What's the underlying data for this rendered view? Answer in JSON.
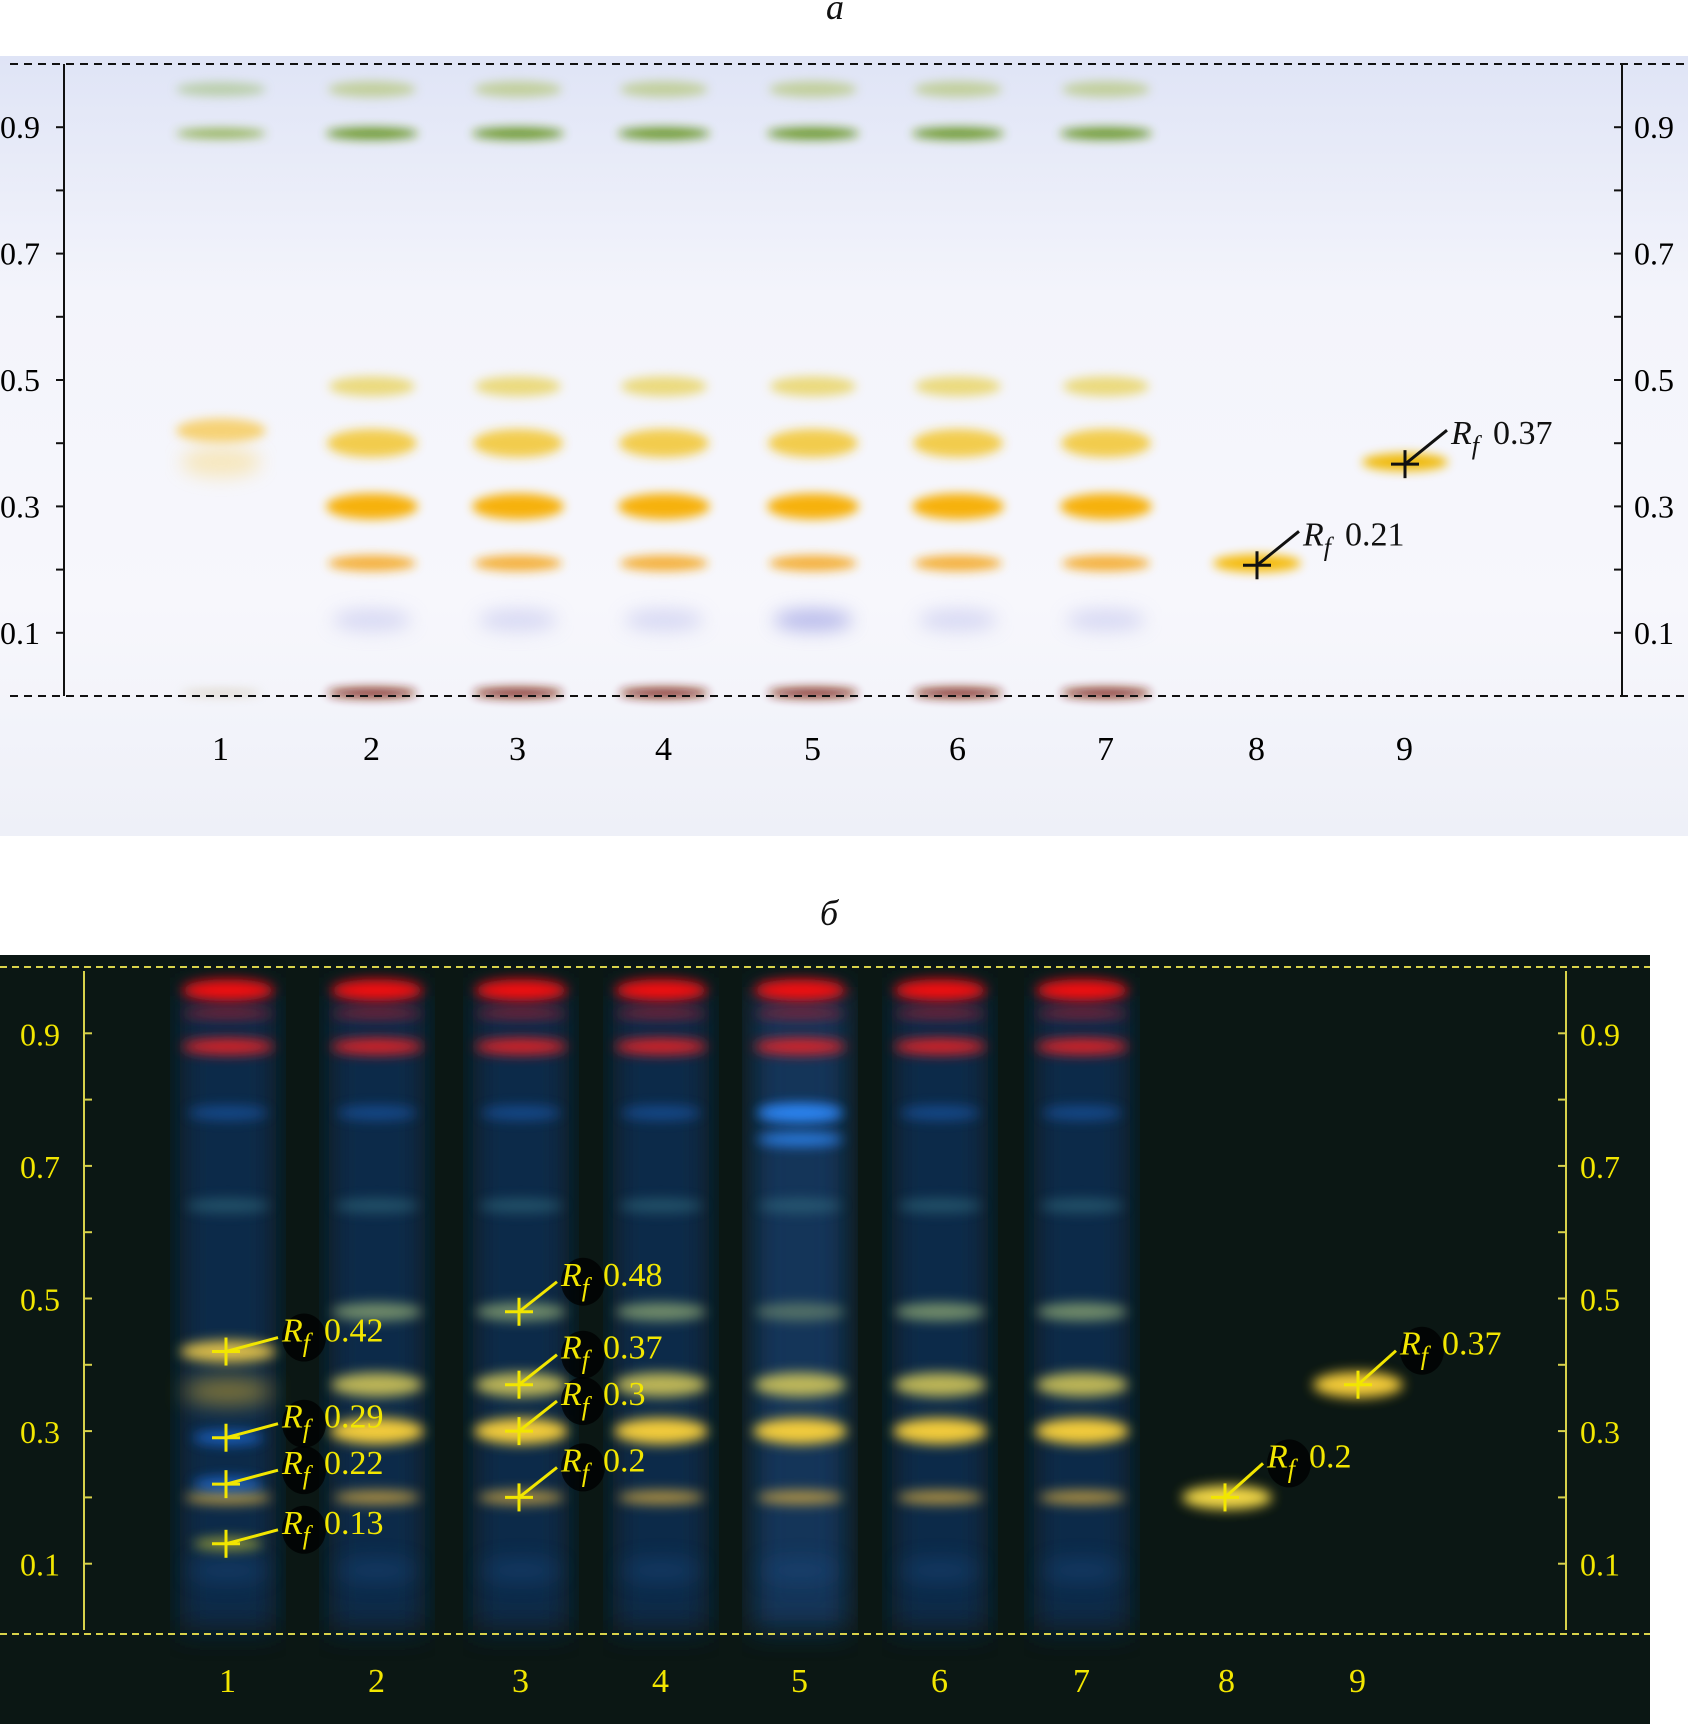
{
  "panel_a": {
    "letter": "а",
    "axis_ticks": [
      "0.1",
      "0.3",
      "0.5",
      "0.7",
      "0.9"
    ],
    "tick_values": [
      0.1,
      0.3,
      0.5,
      0.7,
      0.9
    ],
    "lane_labels": [
      "1",
      "2",
      "3",
      "4",
      "5",
      "6",
      "7",
      "8",
      "9"
    ],
    "rf_annotations": [
      {
        "lane": "8",
        "prefix": "R",
        "sub": "f",
        "value": "0.21",
        "rf": 0.21
      },
      {
        "lane": "9",
        "prefix": "R",
        "sub": "f",
        "value": "0.37",
        "rf": 0.37
      }
    ],
    "colors": {
      "background": "#f3f4fb",
      "ink": "#111111",
      "green_band": "#6f9b1e",
      "yellow_band": "#f5b800",
      "blue_band": "#b4b6e8",
      "brown_band": "#7a1b0a"
    }
  },
  "panel_b": {
    "letter": "б",
    "axis_ticks": [
      "0.1",
      "0.3",
      "0.5",
      "0.7",
      "0.9"
    ],
    "tick_values": [
      0.1,
      0.3,
      0.5,
      0.7,
      0.9
    ],
    "lane_labels": [
      "1",
      "2",
      "3",
      "4",
      "5",
      "6",
      "7",
      "8",
      "9"
    ],
    "rf_annotations": [
      {
        "lane": "1",
        "prefix": "R",
        "sub": "f",
        "value": "0.42",
        "rf": 0.42
      },
      {
        "lane": "1",
        "prefix": "R",
        "sub": "f",
        "value": "0.29",
        "rf": 0.29
      },
      {
        "lane": "1",
        "prefix": "R",
        "sub": "f",
        "value": "0.22",
        "rf": 0.22
      },
      {
        "lane": "1",
        "prefix": "R",
        "sub": "f",
        "value": "0.13",
        "rf": 0.13
      },
      {
        "lane": "3",
        "prefix": "R",
        "sub": "f",
        "value": "0.48",
        "rf": 0.48
      },
      {
        "lane": "3",
        "prefix": "R",
        "sub": "f",
        "value": "0.37",
        "rf": 0.37
      },
      {
        "lane": "3",
        "prefix": "R",
        "sub": "f",
        "value": "0.3",
        "rf": 0.3
      },
      {
        "lane": "3",
        "prefix": "R",
        "sub": "f",
        "value": "0.2",
        "rf": 0.2
      },
      {
        "lane": "8",
        "prefix": "R",
        "sub": "f",
        "value": "0.2",
        "rf": 0.2
      },
      {
        "lane": "9",
        "prefix": "R",
        "sub": "f",
        "value": "0.37",
        "rf": 0.37
      }
    ],
    "colors": {
      "background": "#0b1714",
      "ink": "#f2e600",
      "red_band": "#ff1a1a",
      "blue_band": "#1e6bd6",
      "yellow_band": "#ffe24a"
    }
  }
}
